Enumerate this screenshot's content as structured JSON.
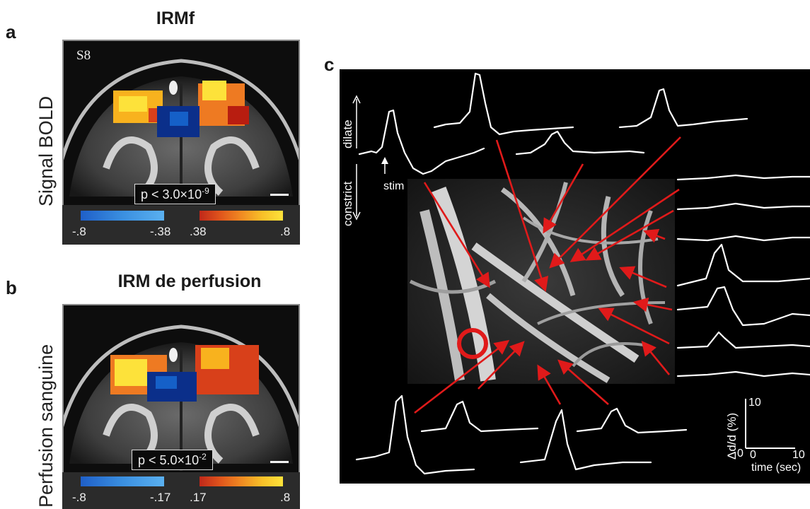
{
  "panel_a": {
    "label": "a",
    "title": "IRMf",
    "row_label": "Signal BOLD",
    "subject_id": "S8",
    "p_prefix": "p < 3.0×10",
    "p_exp": "-9",
    "colorbar": {
      "neg_min": "-.8",
      "neg_max": "-.38",
      "pos_min": ".38",
      "pos_max": ".8"
    }
  },
  "panel_b": {
    "label": "b",
    "title": "IRM de perfusion",
    "row_label": "Perfusion sanguine",
    "p_prefix": "p < 5.0×10",
    "p_exp": "-2",
    "colorbar": {
      "neg_min": "-.8",
      "neg_max": "-.17",
      "pos_min": ".17",
      "pos_max": ".8"
    }
  },
  "panel_c": {
    "label": "c",
    "dilate_label": "dilate",
    "constrict_label": "constrict",
    "stim_label": "stim",
    "y_axis_label": "Δd/d (%)",
    "y_tick_top": "10",
    "y_tick_bottom": "0",
    "x_tick_start": "0",
    "x_tick_end": "10",
    "x_axis_label": "time (sec)"
  },
  "colors": {
    "negative_scale": [
      "#0b2f8a",
      "#1560c8",
      "#2a8ce0",
      "#5ab0f0"
    ],
    "positive_scale": [
      "#b81d10",
      "#d8401a",
      "#ee7a22",
      "#f8b21e",
      "#fde23a"
    ],
    "arrow": "#e01a1a",
    "marker_ring": "#e01a1a"
  }
}
